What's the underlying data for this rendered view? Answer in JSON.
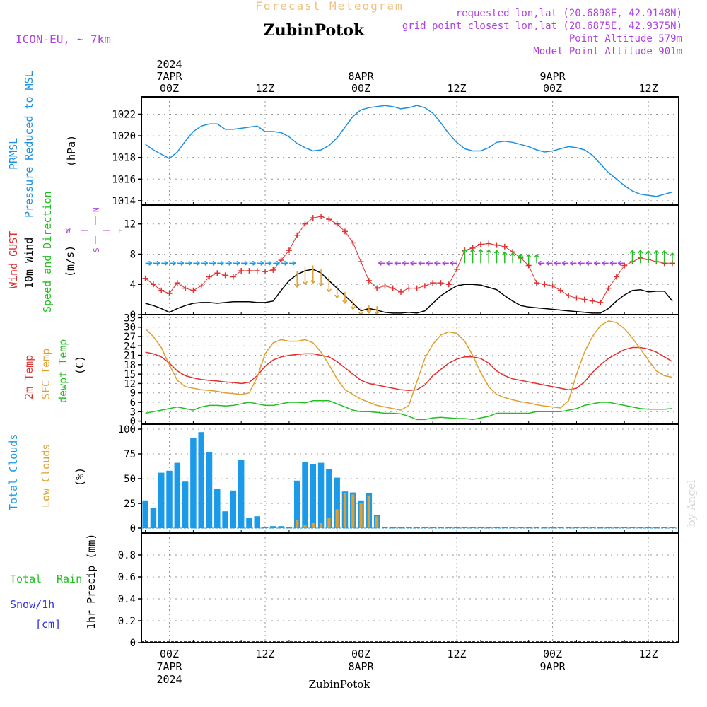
{
  "header": {
    "supertitle": "Forecast Meteogram",
    "location": "ZubinPotok",
    "model": "ICON-EU, ~ 7km",
    "requested": "requested lon,lat (20.6898E, 42.9148N)",
    "closest": "grid point closest lon,lat (20.6875E, 42.9375N)",
    "point_altitude": "Point Altitude 579m",
    "model_altitude": "Model Point Altitude 901m",
    "watermark": "by Angel",
    "footer_location": "ZubinPotok"
  },
  "time_axis": {
    "top_labels": [
      {
        "t": 0,
        "lines": [
          "2024",
          "7APR",
          "00Z"
        ]
      },
      {
        "t": 12,
        "lines": [
          "12Z"
        ]
      },
      {
        "t": 24,
        "lines": [
          "8APR",
          "00Z"
        ]
      },
      {
        "t": 36,
        "lines": [
          "12Z"
        ]
      },
      {
        "t": 48,
        "lines": [
          "9APR",
          "00Z"
        ]
      },
      {
        "t": 60,
        "lines": [
          "12Z"
        ]
      }
    ],
    "bottom_labels": [
      {
        "t": 0,
        "lines": [
          "00Z",
          "7APR",
          "2024"
        ]
      },
      {
        "t": 12,
        "lines": [
          "12Z"
        ]
      },
      {
        "t": 24,
        "lines": [
          "00Z",
          "8APR"
        ]
      },
      {
        "t": 36,
        "lines": [
          "12Z"
        ]
      },
      {
        "t": 48,
        "lines": [
          "00Z",
          "9APR"
        ]
      },
      {
        "t": 60,
        "lines": [
          "12Z"
        ]
      }
    ]
  },
  "panels": {
    "pressure": {
      "label1": "PRMSL",
      "label2": "Pressure Reduced to MSL",
      "unit": "(hPa)"
    },
    "wind": {
      "label_gust": "Wind GUST",
      "label_wind": "10m Wind",
      "label_dir": "Speed and Direction",
      "unit": "(m/s)",
      "compass_w": "W",
      "compass_e": "E",
      "compass_n": "N",
      "compass_s": "S"
    },
    "temp": {
      "label_t2m": "2m Temp",
      "label_sfc": "SFC Temp",
      "label_dew": "dewpt Temp",
      "unit": "(C)"
    },
    "clouds": {
      "label_total": "Total Clouds",
      "label_low": "Low Clouds",
      "unit": "(%)"
    },
    "precip": {
      "label_total": "Total",
      "label_rain": "Rain",
      "label_snow": "Snow/1h",
      "label_cm": "[cm]",
      "label_axis": "1hr Precip (mm)"
    }
  },
  "colors": {
    "pressure": "#1e90e0",
    "gust": "#e03030",
    "wind": "#000000",
    "t2m": "#e03030",
    "sfc": "#e0a030",
    "dew": "#20c020",
    "total_clouds": "#1a9ae8",
    "low_clouds": "#e0a030",
    "rain": "#20c020",
    "snow": "#3030e0",
    "title": "#000000",
    "supertitle": "#f0c080",
    "purple": "#b040e0"
  },
  "chart_data": [
    {
      "type": "line",
      "name": "pressure",
      "x": [
        -3,
        -2,
        -1,
        0,
        1,
        2,
        3,
        4,
        5,
        6,
        7,
        8,
        9,
        10,
        11,
        12,
        13,
        14,
        15,
        16,
        17,
        18,
        19,
        20,
        21,
        22,
        23,
        24,
        25,
        26,
        27,
        28,
        29,
        30,
        31,
        32,
        33,
        34,
        35,
        36,
        37,
        38,
        39,
        40,
        41,
        42,
        43,
        44,
        45,
        46,
        47,
        48,
        49,
        50,
        51,
        52,
        53,
        54,
        55,
        56,
        57,
        58,
        59,
        60,
        61,
        62,
        63
      ],
      "y": [
        1019.2,
        1018.7,
        1018.3,
        1017.9,
        1018.5,
        1019.5,
        1020.4,
        1020.9,
        1021.1,
        1021.1,
        1020.6,
        1020.6,
        1020.7,
        1020.8,
        1020.9,
        1020.4,
        1020.4,
        1020.3,
        1019.9,
        1019.3,
        1018.9,
        1018.6,
        1018.7,
        1019.1,
        1019.8,
        1020.8,
        1021.8,
        1022.4,
        1022.6,
        1022.7,
        1022.8,
        1022.7,
        1022.5,
        1022.6,
        1022.8,
        1022.6,
        1022.1,
        1021.2,
        1020.2,
        1019.4,
        1018.8,
        1018.6,
        1018.6,
        1018.9,
        1019.4,
        1019.5,
        1019.4,
        1019.2,
        1019.0,
        1018.7,
        1018.5,
        1018.6,
        1018.8,
        1019.0,
        1018.9,
        1018.7,
        1018.2,
        1017.4,
        1016.6,
        1016.0,
        1015.4,
        1014.9,
        1014.6,
        1014.5,
        1014.4,
        1014.6,
        1014.8
      ],
      "xlabel": "",
      "ylabel": "(hPa)",
      "ylim": [
        1013.6,
        1023.6
      ],
      "yticks": [
        1014,
        1016,
        1018,
        1020,
        1022
      ]
    },
    {
      "type": "line",
      "name": "wind",
      "x": [
        -3,
        -2,
        -1,
        0,
        1,
        2,
        3,
        4,
        5,
        6,
        7,
        8,
        9,
        10,
        11,
        12,
        13,
        14,
        15,
        16,
        17,
        18,
        19,
        20,
        21,
        22,
        23,
        24,
        25,
        26,
        27,
        28,
        29,
        30,
        31,
        32,
        33,
        34,
        35,
        36,
        37,
        38,
        39,
        40,
        41,
        42,
        43,
        44,
        45,
        46,
        47,
        48,
        49,
        50,
        51,
        52,
        53,
        54,
        55,
        56,
        57,
        58,
        59,
        60,
        61,
        62,
        63
      ],
      "series": [
        {
          "name": "Wind GUST",
          "values": [
            4.8,
            4.0,
            3.2,
            2.8,
            4.2,
            3.5,
            3.2,
            3.8,
            5.0,
            5.5,
            5.2,
            5.0,
            5.8,
            5.8,
            5.8,
            5.7,
            5.9,
            7.2,
            8.5,
            10.5,
            12.0,
            12.8,
            13.0,
            12.6,
            12.0,
            11.0,
            9.5,
            7.0,
            4.5,
            3.5,
            3.8,
            3.5,
            3.0,
            3.5,
            3.5,
            3.8,
            4.2,
            4.2,
            4.0,
            6.0,
            8.5,
            8.8,
            9.3,
            9.4,
            9.2,
            9.0,
            8.3,
            7.5,
            6.5,
            4.2,
            4.0,
            3.8,
            3.2,
            2.5,
            2.2,
            2.0,
            1.8,
            1.6,
            3.5,
            5.0,
            6.5,
            7.0,
            7.5,
            7.3,
            7.0,
            6.8,
            6.8
          ]
        },
        {
          "name": "10m Wind",
          "values": [
            1.5,
            1.2,
            0.8,
            0.3,
            0.8,
            1.2,
            1.5,
            1.6,
            1.6,
            1.5,
            1.6,
            1.7,
            1.7,
            1.7,
            1.6,
            1.6,
            1.8,
            3.2,
            4.5,
            5.3,
            5.8,
            6.0,
            5.5,
            4.5,
            3.5,
            2.5,
            1.5,
            0.5,
            0.8,
            0.6,
            0.3,
            0.2,
            0.2,
            0.3,
            0.2,
            0.5,
            1.5,
            2.5,
            3.2,
            3.8,
            4.0,
            4.0,
            3.9,
            3.6,
            3.3,
            2.5,
            1.8,
            1.2,
            1.0,
            0.9,
            0.8,
            0.7,
            0.6,
            0.5,
            0.4,
            0.3,
            0.2,
            0.2,
            0.8,
            1.8,
            2.6,
            3.2,
            3.3,
            3.0,
            3.1,
            3.1,
            1.8
          ]
        }
      ],
      "arrows": [
        {
          "dir": "E",
          "from": -3,
          "to": 15,
          "color": "#1a9ae8"
        },
        {
          "dir": "S",
          "from": 16,
          "to": 26,
          "color": "#e0a030"
        },
        {
          "dir": "W",
          "from": 27,
          "to": 36,
          "color": "#b040e0"
        },
        {
          "dir": "N",
          "from": 37,
          "to": 46,
          "color": "#20c020"
        },
        {
          "dir": "W",
          "from": 47,
          "to": 57,
          "color": "#b040e0"
        },
        {
          "dir": "N",
          "from": 58,
          "to": 63,
          "color": "#20c020"
        }
      ],
      "ylim": [
        0,
        14.5
      ],
      "yticks": [
        0,
        4,
        8,
        12
      ]
    },
    {
      "type": "line",
      "name": "temperature",
      "x": [
        -3,
        -2,
        -1,
        0,
        1,
        2,
        3,
        4,
        5,
        6,
        7,
        8,
        9,
        10,
        11,
        12,
        13,
        14,
        15,
        16,
        17,
        18,
        19,
        20,
        21,
        22,
        23,
        24,
        25,
        26,
        27,
        28,
        29,
        30,
        31,
        32,
        33,
        34,
        35,
        36,
        37,
        38,
        39,
        40,
        41,
        42,
        43,
        44,
        45,
        46,
        47,
        48,
        49,
        50,
        51,
        52,
        53,
        54,
        55,
        56,
        57,
        58,
        59,
        60,
        61,
        62,
        63
      ],
      "series": [
        {
          "name": "2m Temp",
          "values": [
            22.0,
            21.5,
            20.5,
            18.5,
            16.0,
            14.5,
            13.8,
            13.3,
            13.0,
            12.8,
            12.5,
            12.3,
            12.0,
            12.4,
            14.5,
            17.5,
            19.5,
            20.5,
            21.0,
            21.3,
            21.5,
            21.5,
            21.0,
            20.5,
            19.0,
            17.0,
            15.0,
            13.0,
            12.0,
            11.5,
            11.0,
            10.5,
            10.0,
            9.8,
            10.0,
            11.5,
            14.5,
            16.5,
            18.5,
            19.8,
            20.5,
            20.5,
            20.0,
            18.5,
            16.0,
            14.5,
            13.5,
            13.0,
            12.5,
            12.0,
            11.5,
            11.0,
            10.5,
            10.0,
            10.5,
            12.5,
            15.5,
            18.0,
            20.0,
            21.5,
            22.8,
            23.5,
            23.5,
            23.0,
            22.0,
            20.5,
            19.0
          ]
        },
        {
          "name": "SFC Temp",
          "values": [
            29.5,
            27.0,
            23.5,
            18.0,
            13.0,
            11.0,
            10.5,
            10.0,
            9.8,
            9.5,
            9.0,
            8.8,
            8.5,
            9.0,
            14.0,
            21.5,
            25.0,
            26.0,
            25.5,
            25.5,
            26.0,
            25.0,
            22.0,
            18.0,
            13.5,
            10.0,
            8.5,
            7.0,
            6.0,
            5.0,
            4.5,
            4.0,
            3.5,
            5.0,
            12.5,
            20.0,
            24.5,
            27.5,
            28.5,
            28.0,
            25.5,
            21.0,
            15.5,
            11.0,
            8.5,
            7.5,
            6.8,
            6.2,
            5.8,
            5.2,
            4.8,
            4.5,
            4.2,
            6.5,
            15.0,
            22.0,
            27.0,
            30.5,
            32.0,
            31.5,
            29.5,
            26.5,
            23.0,
            19.5,
            16.0,
            14.5,
            14.0
          ]
        },
        {
          "name": "dewpt Temp",
          "values": [
            2.5,
            3.0,
            3.5,
            4.0,
            4.5,
            4.0,
            3.5,
            4.5,
            5.0,
            5.0,
            4.8,
            5.0,
            5.5,
            6.0,
            5.5,
            5.0,
            5.0,
            5.5,
            6.0,
            6.0,
            5.8,
            6.5,
            6.5,
            6.5,
            5.5,
            4.5,
            3.5,
            3.0,
            3.0,
            2.8,
            2.5,
            2.5,
            2.3,
            1.5,
            0.5,
            0.5,
            1.0,
            1.2,
            1.0,
            0.8,
            0.8,
            0.5,
            1.0,
            1.5,
            2.5,
            2.5,
            2.5,
            2.5,
            2.5,
            3.0,
            3.0,
            3.0,
            3.0,
            3.5,
            4.0,
            5.0,
            5.5,
            6.0,
            6.0,
            5.5,
            5.0,
            4.5,
            4.0,
            3.8,
            3.8,
            3.8,
            4.0
          ]
        }
      ],
      "ylim": [
        -1,
        34
      ],
      "yticks": [
        0,
        3,
        6,
        9,
        12,
        15,
        18,
        21,
        24,
        27,
        30,
        33
      ]
    },
    {
      "type": "bar",
      "name": "clouds",
      "x": [
        -3,
        -2,
        -1,
        0,
        1,
        2,
        3,
        4,
        5,
        6,
        7,
        8,
        9,
        10,
        11,
        12,
        13,
        14,
        15,
        16,
        17,
        18,
        19,
        20,
        21,
        22,
        23,
        24,
        25,
        26,
        27,
        28,
        29,
        30,
        31,
        32,
        33,
        34,
        35,
        36,
        37,
        38,
        39,
        40,
        41,
        42,
        43,
        44,
        45,
        46,
        47,
        48,
        49,
        50,
        51,
        52,
        53,
        54,
        55,
        56,
        57,
        58,
        59,
        60,
        61,
        62,
        63
      ],
      "series": [
        {
          "name": "Total Clouds",
          "values": [
            28,
            20,
            56,
            58,
            66,
            47,
            91,
            97,
            77,
            40,
            17,
            38,
            69,
            10,
            12,
            1,
            2,
            2,
            1,
            48,
            67,
            65,
            66,
            60,
            51,
            37,
            36,
            28,
            35,
            13,
            0,
            0,
            0,
            0,
            0,
            0,
            0,
            0,
            0,
            0,
            0,
            0,
            0,
            0,
            0,
            0,
            0,
            0,
            0,
            0,
            0,
            0,
            1,
            0,
            0,
            0,
            0,
            0,
            0,
            0,
            0,
            0,
            0,
            0,
            0,
            0,
            0
          ]
        },
        {
          "name": "Low Clouds",
          "values": [
            0,
            0,
            0,
            0,
            0,
            0,
            0,
            0,
            0,
            0,
            0,
            0,
            0,
            0,
            0,
            0,
            0,
            0,
            0,
            8,
            3,
            5,
            5,
            10,
            19,
            35,
            34,
            25,
            33,
            12,
            0,
            0,
            0,
            0,
            0,
            0,
            0,
            0,
            0,
            0,
            0,
            0,
            0,
            0,
            0,
            0,
            0,
            0,
            0,
            0,
            0,
            0,
            0,
            0,
            0,
            0,
            0,
            0,
            0,
            0,
            0,
            0,
            0,
            0,
            0,
            0,
            0
          ]
        }
      ],
      "ylim": [
        -5,
        105
      ],
      "yticks": [
        0,
        25,
        50,
        75,
        100
      ]
    },
    {
      "type": "bar",
      "name": "precipitation",
      "series": [
        {
          "name": "Total Rain",
          "values": []
        },
        {
          "name": "Snow/1h",
          "values": []
        }
      ],
      "ylabel": "1hr Precip (mm)",
      "ylim": [
        0,
        1.0
      ],
      "yticks": [
        0,
        0.2,
        0.4,
        0.6,
        0.8
      ]
    }
  ]
}
